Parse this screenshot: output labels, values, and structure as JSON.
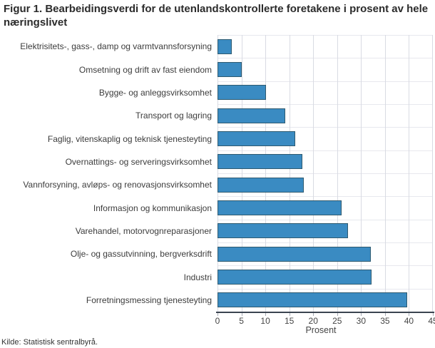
{
  "title": "Figur 1. Bearbeidingsverdi for de utenlandskontrollerte foretakene i prosent av hele næringslivet",
  "source": "Kilde: Statistisk sentralbyrå.",
  "chart_data": {
    "type": "bar",
    "orientation": "horizontal",
    "title": "Figur 1. Bearbeidingsverdi for de utenlandskontrollerte foretakene i prosent av hele næringslivet",
    "categories": [
      "Elektrisitets-, gass-, damp og varmtvannsforsyning",
      "Omsetning og drift av fast eiendom",
      "Bygge- og anleggsvirksomhet",
      "Transport og lagring",
      "Faglig, vitenskaplig og teknisk tjenesteyting",
      "Overnattings- og serveringsvirksomhet",
      "Vannforsyning, avløps- og renovasjonsvirksomhet",
      "Informasjon og kommunikasjon",
      "Varehandel, motorvognreparasjoner",
      "Olje- og gassutvinning, bergverksdrift",
      "Industri",
      "Forretningsmessing tjenesteyting"
    ],
    "values": [
      3,
      5,
      10.2,
      14.1,
      16.2,
      17.8,
      18,
      25.9,
      27.2,
      32,
      32.2,
      39.6
    ],
    "xlabel": "Prosent",
    "ylabel": "",
    "xlim": [
      0,
      45
    ],
    "xticks": [
      0,
      5,
      10,
      15,
      20,
      25,
      30,
      35,
      40,
      45
    ],
    "grid": true,
    "legend": false,
    "bar_color": "#3a8bc2",
    "bar_border_color": "#2e5a70",
    "axis_line_color": "#3b4450",
    "gridline_color": "#d9dbe3"
  }
}
